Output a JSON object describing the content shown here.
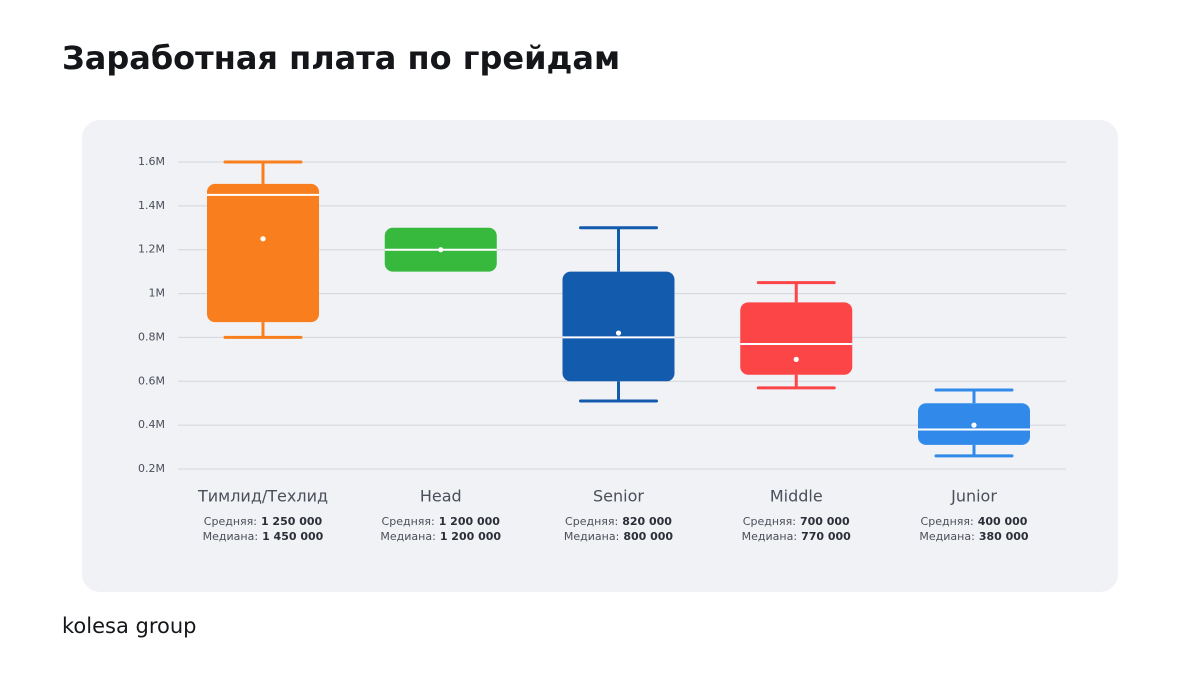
{
  "chart_data": {
    "type": "box",
    "title": "Заработная плата по грейдам",
    "categories": [
      "Тимлид/Техлид",
      "Head",
      "Senior",
      "Middle",
      "Junior"
    ],
    "mean_caption": "Средняя:",
    "median_caption": "Медиана:",
    "boxes": [
      {
        "color": "#f97f1e",
        "whisker_low": 800000,
        "q1": 870000,
        "median": 1450000,
        "q3": 1500000,
        "whisker_high": 1600000,
        "mean": 1250000,
        "mean_label": "1 250 000",
        "median_label": "1 450 000"
      },
      {
        "color": "#36b93c",
        "whisker_low": null,
        "q1": 1100000,
        "median": 1200000,
        "q3": 1300000,
        "whisker_high": null,
        "mean": 1200000,
        "mean_label": "1 200 000",
        "median_label": "1 200 000"
      },
      {
        "color": "#135bad",
        "whisker_low": 510000,
        "q1": 600000,
        "median": 800000,
        "q3": 1100000,
        "whisker_high": 1300000,
        "mean": 820000,
        "mean_label": "820 000",
        "median_label": "800 000"
      },
      {
        "color": "#fc4547",
        "whisker_low": 570000,
        "q1": 630000,
        "median": 770000,
        "q3": 960000,
        "whisker_high": 1050000,
        "mean": 700000,
        "mean_label": "700 000",
        "median_label": "770 000"
      },
      {
        "color": "#3189ea",
        "whisker_low": 260000,
        "q1": 310000,
        "median": 380000,
        "q3": 500000,
        "whisker_high": 560000,
        "mean": 400000,
        "mean_label": "400 000",
        "median_label": "380 000"
      }
    ],
    "ylim": [
      200000,
      1600000
    ],
    "yticks": [
      {
        "value": 200000,
        "label": "0.2M"
      },
      {
        "value": 400000,
        "label": "0.4M"
      },
      {
        "value": 600000,
        "label": "0.6M"
      },
      {
        "value": 800000,
        "label": "0.8M"
      },
      {
        "value": 1000000,
        "label": "1M"
      },
      {
        "value": 1200000,
        "label": "1.2M"
      },
      {
        "value": 1400000,
        "label": "1.4M"
      },
      {
        "value": 1600000,
        "label": "1.6M"
      }
    ],
    "grid": true
  },
  "footer": {
    "brand": "kolesa group"
  }
}
